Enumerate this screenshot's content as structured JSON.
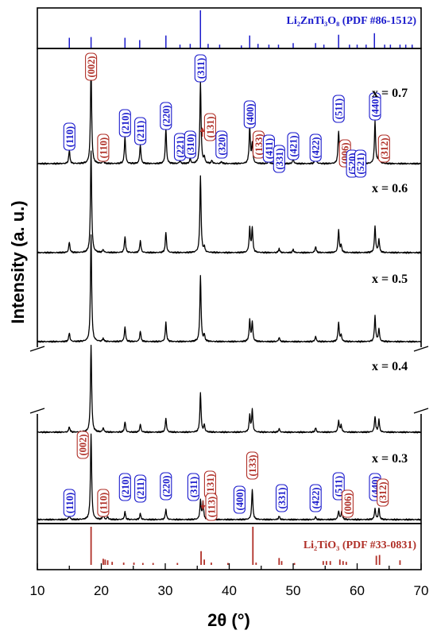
{
  "chart_data": {
    "type": "line",
    "xlabel": "2θ (°)",
    "ylabel": "Intensity (a. u.)",
    "xlim": [
      10,
      70
    ],
    "xticks": [
      "10",
      "20",
      "30",
      "40",
      "50",
      "60",
      "70"
    ],
    "colors": {
      "ref_top": "#1a1acc",
      "ref_bottom": "#b03028",
      "pattern": "#000000",
      "hkl_blue": "#1a1acc",
      "hkl_red": "#b03028"
    },
    "reference_top": {
      "name": "Li₂ZnTi₃O₈ (PDF #86-1512)",
      "peaks": [
        {
          "x": 15.0,
          "i": 0.28
        },
        {
          "x": 18.4,
          "i": 0.3
        },
        {
          "x": 23.7,
          "i": 0.28
        },
        {
          "x": 26.0,
          "i": 0.22
        },
        {
          "x": 30.1,
          "i": 0.34
        },
        {
          "x": 32.3,
          "i": 0.1
        },
        {
          "x": 33.9,
          "i": 0.12
        },
        {
          "x": 35.5,
          "i": 1.0
        },
        {
          "x": 36.7,
          "i": 0.12
        },
        {
          "x": 38.5,
          "i": 0.1
        },
        {
          "x": 41.9,
          "i": 0.08
        },
        {
          "x": 43.2,
          "i": 0.34
        },
        {
          "x": 44.5,
          "i": 0.12
        },
        {
          "x": 46.2,
          "i": 0.1
        },
        {
          "x": 47.7,
          "i": 0.1
        },
        {
          "x": 50.0,
          "i": 0.14
        },
        {
          "x": 53.5,
          "i": 0.14
        },
        {
          "x": 54.8,
          "i": 0.1
        },
        {
          "x": 57.1,
          "i": 0.36
        },
        {
          "x": 58.8,
          "i": 0.1
        },
        {
          "x": 60.0,
          "i": 0.1
        },
        {
          "x": 61.4,
          "i": 0.1
        },
        {
          "x": 62.7,
          "i": 0.4
        },
        {
          "x": 64.3,
          "i": 0.1
        },
        {
          "x": 65.2,
          "i": 0.1
        },
        {
          "x": 66.7,
          "i": 0.1
        },
        {
          "x": 67.6,
          "i": 0.1
        },
        {
          "x": 68.6,
          "i": 0.1
        }
      ]
    },
    "reference_bottom": {
      "name": "Li₂TiO₃ (PDF #33-0831)",
      "peaks": [
        {
          "x": 18.4,
          "i": 1.0
        },
        {
          "x": 20.3,
          "i": 0.16
        },
        {
          "x": 20.6,
          "i": 0.14
        },
        {
          "x": 21.0,
          "i": 0.12
        },
        {
          "x": 21.7,
          "i": 0.08
        },
        {
          "x": 23.5,
          "i": 0.06
        },
        {
          "x": 25.1,
          "i": 0.06
        },
        {
          "x": 26.5,
          "i": 0.05
        },
        {
          "x": 28.1,
          "i": 0.05
        },
        {
          "x": 31.9,
          "i": 0.05
        },
        {
          "x": 35.6,
          "i": 0.36
        },
        {
          "x": 36.1,
          "i": 0.14
        },
        {
          "x": 37.2,
          "i": 0.06
        },
        {
          "x": 39.8,
          "i": 0.05
        },
        {
          "x": 43.7,
          "i": 1.0
        },
        {
          "x": 44.2,
          "i": 0.06
        },
        {
          "x": 47.8,
          "i": 0.18
        },
        {
          "x": 48.2,
          "i": 0.1
        },
        {
          "x": 50.2,
          "i": 0.05
        },
        {
          "x": 54.7,
          "i": 0.1
        },
        {
          "x": 55.2,
          "i": 0.1
        },
        {
          "x": 55.8,
          "i": 0.1
        },
        {
          "x": 57.3,
          "i": 0.14
        },
        {
          "x": 57.8,
          "i": 0.1
        },
        {
          "x": 58.3,
          "i": 0.08
        },
        {
          "x": 63.0,
          "i": 0.24
        },
        {
          "x": 63.5,
          "i": 0.26
        },
        {
          "x": 66.7,
          "i": 0.12
        }
      ]
    },
    "series": [
      {
        "name": "x = 0.7",
        "peaks": [
          {
            "x": 15.0,
            "h": 0.13
          },
          {
            "x": 18.4,
            "h": 0.98
          },
          {
            "x": 20.3,
            "h": 0.03
          },
          {
            "x": 23.7,
            "h": 0.27
          },
          {
            "x": 26.1,
            "h": 0.19
          },
          {
            "x": 30.1,
            "h": 0.35
          },
          {
            "x": 32.3,
            "h": 0.03
          },
          {
            "x": 33.9,
            "h": 0.05
          },
          {
            "x": 35.5,
            "h": 0.82
          },
          {
            "x": 36.1,
            "h": 0.06
          },
          {
            "x": 37.3,
            "h": 0.03
          },
          {
            "x": 38.8,
            "h": 0.02
          },
          {
            "x": 43.2,
            "h": 0.37
          },
          {
            "x": 43.6,
            "h": 0.2
          },
          {
            "x": 46.2,
            "h": 0.03
          },
          {
            "x": 47.8,
            "h": 0.04
          },
          {
            "x": 50.0,
            "h": 0.05
          },
          {
            "x": 53.5,
            "h": 0.09
          },
          {
            "x": 57.1,
            "h": 0.32
          },
          {
            "x": 57.5,
            "h": 0.1
          },
          {
            "x": 59.2,
            "h": 0.03
          },
          {
            "x": 60.5,
            "h": 0.04
          },
          {
            "x": 62.8,
            "h": 0.42
          },
          {
            "x": 63.4,
            "h": 0.1
          }
        ]
      },
      {
        "name": "x = 0.6",
        "peaks": [
          {
            "x": 15.0,
            "h": 0.1
          },
          {
            "x": 18.4,
            "h": 1.0
          },
          {
            "x": 20.3,
            "h": 0.03
          },
          {
            "x": 23.7,
            "h": 0.16
          },
          {
            "x": 26.1,
            "h": 0.12
          },
          {
            "x": 30.1,
            "h": 0.2
          },
          {
            "x": 35.5,
            "h": 0.76
          },
          {
            "x": 36.1,
            "h": 0.05
          },
          {
            "x": 43.2,
            "h": 0.24
          },
          {
            "x": 43.6,
            "h": 0.24
          },
          {
            "x": 47.8,
            "h": 0.04
          },
          {
            "x": 50.0,
            "h": 0.03
          },
          {
            "x": 53.5,
            "h": 0.06
          },
          {
            "x": 57.1,
            "h": 0.22
          },
          {
            "x": 57.5,
            "h": 0.07
          },
          {
            "x": 62.8,
            "h": 0.26
          },
          {
            "x": 63.4,
            "h": 0.13
          }
        ]
      },
      {
        "name": "x = 0.5",
        "peaks": [
          {
            "x": 15.0,
            "h": 0.08
          },
          {
            "x": 18.4,
            "h": 1.0
          },
          {
            "x": 20.3,
            "h": 0.03
          },
          {
            "x": 23.7,
            "h": 0.14
          },
          {
            "x": 26.1,
            "h": 0.1
          },
          {
            "x": 30.1,
            "h": 0.18
          },
          {
            "x": 35.5,
            "h": 0.62
          },
          {
            "x": 36.1,
            "h": 0.06
          },
          {
            "x": 43.2,
            "h": 0.2
          },
          {
            "x": 43.6,
            "h": 0.18
          },
          {
            "x": 47.8,
            "h": 0.04
          },
          {
            "x": 53.5,
            "h": 0.05
          },
          {
            "x": 57.1,
            "h": 0.18
          },
          {
            "x": 57.5,
            "h": 0.06
          },
          {
            "x": 62.8,
            "h": 0.24
          },
          {
            "x": 63.4,
            "h": 0.12
          }
        ]
      },
      {
        "name": "x = 0.4",
        "peaks": [
          {
            "x": 15.0,
            "h": 0.06
          },
          {
            "x": 18.4,
            "h": 1.0
          },
          {
            "x": 20.3,
            "h": 0.05
          },
          {
            "x": 23.7,
            "h": 0.12
          },
          {
            "x": 26.1,
            "h": 0.09
          },
          {
            "x": 30.1,
            "h": 0.16
          },
          {
            "x": 35.5,
            "h": 0.45
          },
          {
            "x": 36.1,
            "h": 0.08
          },
          {
            "x": 43.2,
            "h": 0.19
          },
          {
            "x": 43.6,
            "h": 0.25
          },
          {
            "x": 47.8,
            "h": 0.04
          },
          {
            "x": 53.5,
            "h": 0.05
          },
          {
            "x": 57.1,
            "h": 0.13
          },
          {
            "x": 57.5,
            "h": 0.08
          },
          {
            "x": 62.8,
            "h": 0.18
          },
          {
            "x": 63.4,
            "h": 0.14
          }
        ]
      },
      {
        "name": "x = 0.3",
        "peaks": [
          {
            "x": 15.0,
            "h": 0.05
          },
          {
            "x": 18.4,
            "h": 1.0
          },
          {
            "x": 20.3,
            "h": 0.06
          },
          {
            "x": 21.0,
            "h": 0.03
          },
          {
            "x": 23.7,
            "h": 0.09
          },
          {
            "x": 26.1,
            "h": 0.07
          },
          {
            "x": 30.1,
            "h": 0.12
          },
          {
            "x": 35.5,
            "h": 0.22
          },
          {
            "x": 35.9,
            "h": 0.2
          },
          {
            "x": 37.3,
            "h": 0.03
          },
          {
            "x": 43.6,
            "h": 0.35
          },
          {
            "x": 47.8,
            "h": 0.04
          },
          {
            "x": 53.5,
            "h": 0.03
          },
          {
            "x": 57.1,
            "h": 0.1
          },
          {
            "x": 57.6,
            "h": 0.1
          },
          {
            "x": 62.8,
            "h": 0.13
          },
          {
            "x": 63.4,
            "h": 0.13
          }
        ]
      }
    ],
    "annotations_x07": [
      {
        "text": "(002)",
        "x": 18.4,
        "color": "red"
      },
      {
        "text": "(110)",
        "x": 15.0,
        "color": "blue"
      },
      {
        "text": "(110)",
        "x": 20.3,
        "color": "red"
      },
      {
        "text": "(210)",
        "x": 23.7,
        "color": "blue"
      },
      {
        "text": "(211)",
        "x": 26.1,
        "color": "blue"
      },
      {
        "text": "(220)",
        "x": 30.1,
        "color": "blue"
      },
      {
        "text": "(221)",
        "x": 32.3,
        "color": "blue"
      },
      {
        "text": "(310)",
        "x": 33.9,
        "color": "blue"
      },
      {
        "text": "(311)",
        "x": 35.5,
        "color": "blue"
      },
      {
        "text": "(131)",
        "x": 37.0,
        "color": "red"
      },
      {
        "text": "(320)",
        "x": 38.8,
        "color": "blue"
      },
      {
        "text": "(400)",
        "x": 43.2,
        "color": "blue"
      },
      {
        "text": "(133)",
        "x": 44.6,
        "color": "red"
      },
      {
        "text": "(411)",
        "x": 46.2,
        "color": "blue"
      },
      {
        "text": "(331)",
        "x": 47.8,
        "color": "blue"
      },
      {
        "text": "(421)",
        "x": 50.0,
        "color": "blue"
      },
      {
        "text": "(422)",
        "x": 53.5,
        "color": "blue"
      },
      {
        "text": "(511)",
        "x": 57.1,
        "color": "blue"
      },
      {
        "text": "(006)",
        "x": 58.1,
        "color": "red"
      },
      {
        "text": "(520)",
        "x": 59.2,
        "color": "blue"
      },
      {
        "text": "(521)",
        "x": 60.5,
        "color": "blue"
      },
      {
        "text": "(440)",
        "x": 62.8,
        "color": "blue"
      },
      {
        "text": "(312)",
        "x": 64.2,
        "color": "red"
      }
    ],
    "annotations_x03": [
      {
        "text": "(002)",
        "x": 17.1,
        "color": "red"
      },
      {
        "text": "(110)",
        "x": 15.0,
        "color": "blue"
      },
      {
        "text": "(110)",
        "x": 20.3,
        "color": "red"
      },
      {
        "text": "(210)",
        "x": 23.7,
        "color": "blue"
      },
      {
        "text": "(211)",
        "x": 26.1,
        "color": "blue"
      },
      {
        "text": "(220)",
        "x": 30.1,
        "color": "blue"
      },
      {
        "text": "(311)",
        "x": 34.4,
        "color": "blue"
      },
      {
        "text": "(131)",
        "x": 37.0,
        "color": "red"
      },
      {
        "text": "(113)",
        "x": 37.2,
        "color": "red"
      },
      {
        "text": "(400)",
        "x": 41.6,
        "color": "blue"
      },
      {
        "text": "(133)",
        "x": 43.6,
        "color": "red"
      },
      {
        "text": "(331)",
        "x": 48.2,
        "color": "blue"
      },
      {
        "text": "(422)",
        "x": 53.5,
        "color": "blue"
      },
      {
        "text": "(511)",
        "x": 57.1,
        "color": "blue"
      },
      {
        "text": "(006)",
        "x": 58.5,
        "color": "red"
      },
      {
        "text": "(440)",
        "x": 62.8,
        "color": "blue"
      },
      {
        "text": "(312)",
        "x": 64.0,
        "color": "red"
      }
    ]
  }
}
